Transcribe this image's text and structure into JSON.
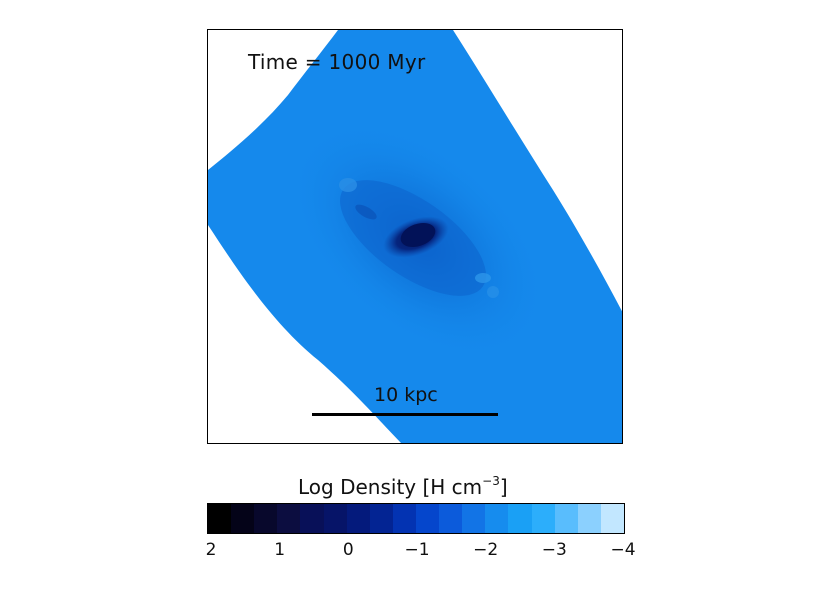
{
  "plot": {
    "time_label": "Time = 1000 Myr",
    "scale_label": "10 kpc"
  },
  "colorbar": {
    "title_main": "Log Density [H cm",
    "title_sup": "−3",
    "title_end": "]",
    "tick_labels": [
      "2",
      "1",
      "0",
      "−1",
      "−2",
      "−3",
      "−4"
    ],
    "colors": [
      "#000000",
      "#040318",
      "#08082c",
      "#0c0d40",
      "#081058",
      "#061468",
      "#041a7c",
      "#032493",
      "#0333b2",
      "#0546cc",
      "#0c5bdb",
      "#1274e6",
      "#168cee",
      "#1aa0f5",
      "#2caefb",
      "#59bdfd",
      "#8bd0fe",
      "#c2e7ff"
    ]
  }
}
